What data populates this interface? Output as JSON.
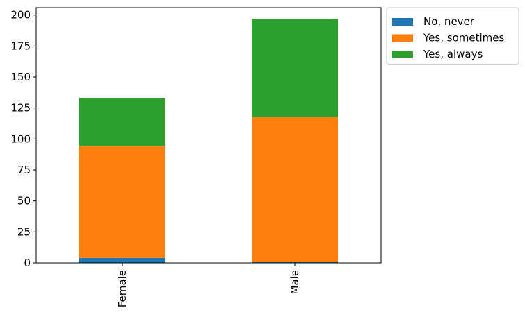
{
  "chart_data": {
    "type": "bar",
    "stacked": true,
    "title": "",
    "xlabel": "",
    "ylabel": "",
    "categories": [
      "Female",
      "Male"
    ],
    "series": [
      {
        "name": "No, never",
        "values": [
          4,
          1
        ],
        "color": "#1f77b4"
      },
      {
        "name": "Yes, sometimes",
        "values": [
          90,
          117
        ],
        "color": "#ff7f0e"
      },
      {
        "name": "Yes, always",
        "values": [
          39,
          79
        ],
        "color": "#2ca02c"
      }
    ],
    "ylim": [
      0,
      206
    ],
    "yticks": [
      0,
      25,
      50,
      75,
      100,
      125,
      150,
      175,
      200
    ],
    "grid": false,
    "legend_position": "outside-top-right",
    "category_label_rotation": "vertical"
  }
}
